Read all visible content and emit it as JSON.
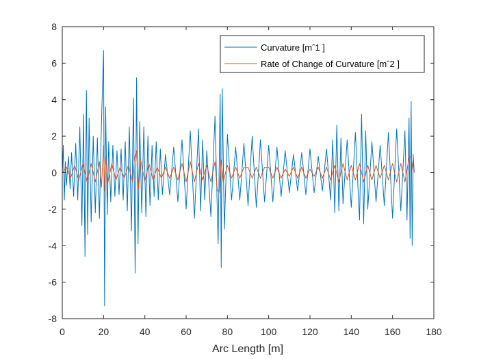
{
  "chart_data": {
    "type": "line",
    "title": "",
    "xlabel": "Arc Length [m]",
    "ylabel": "",
    "xlim": [
      0,
      180
    ],
    "ylim": [
      -8,
      8
    ],
    "xticks": [
      0,
      20,
      40,
      60,
      80,
      100,
      120,
      140,
      160,
      180
    ],
    "yticks": [
      -8,
      -6,
      -4,
      -2,
      0,
      2,
      4,
      6,
      8
    ],
    "grid": false,
    "legend_position": "top-right",
    "series": [
      {
        "name": "Curvature [mˆ1 ]",
        "color": "#0072BD",
        "x": [
          0,
          0.5,
          1,
          1.5,
          2,
          3,
          3.8,
          4.5,
          5.5,
          6.5,
          7.5,
          8.5,
          9.5,
          10.3,
          11,
          11.7,
          12.3,
          13,
          14,
          15,
          16,
          17,
          18,
          19,
          20,
          20.5,
          21,
          21.8,
          22.5,
          23.5,
          24.5,
          25.5,
          26.5,
          27.5,
          28.5,
          29.5,
          30.5,
          31.5,
          32.5,
          33.5,
          34.5,
          35.3,
          36,
          36.7,
          37.5,
          38.5,
          39.5,
          40.5,
          41.5,
          42.5,
          43.5,
          44.5,
          45.5,
          46.5,
          47.5,
          48.5,
          50,
          52,
          54,
          56,
          58,
          60,
          62,
          64,
          66,
          67,
          68,
          69,
          70,
          72,
          74,
          75.5,
          76.5,
          77,
          77.5,
          78.5,
          80,
          82,
          84,
          86,
          88,
          90,
          92,
          94,
          96,
          98,
          100,
          102,
          104,
          106,
          108,
          110,
          112,
          114,
          116,
          118,
          120,
          122,
          124,
          126,
          128,
          130,
          131,
          132,
          133,
          134,
          135,
          136,
          138,
          140,
          142,
          144,
          145,
          146,
          147,
          148,
          150,
          152,
          154,
          156,
          158,
          160,
          162,
          164,
          166,
          167,
          168,
          168.5,
          169,
          169.5,
          170,
          170.5
        ],
        "values": [
          0,
          1.5,
          -1.5,
          0.6,
          -0.7,
          0.9,
          -0.9,
          1.1,
          -1.3,
          1.6,
          -1.5,
          2.5,
          -2.9,
          3.2,
          -4.6,
          4.5,
          -3.4,
          3,
          -2.7,
          2,
          -2.2,
          1.9,
          -2.5,
          2.8,
          6.7,
          -7.3,
          3.6,
          -2.3,
          1.7,
          -1.6,
          1.5,
          -1.3,
          1.2,
          -1.2,
          1.3,
          -1.5,
          1.7,
          -2.1,
          2.5,
          -3.2,
          4.1,
          -5.5,
          5.2,
          -3.9,
          2.8,
          -2.2,
          2.5,
          -2.4,
          2,
          -1.8,
          1.5,
          -1.3,
          1.7,
          -1.5,
          1.3,
          -1.2,
          1,
          -1.2,
          1.4,
          -1.6,
          1.8,
          -2,
          2.3,
          -2.5,
          2.4,
          -2.1,
          1.8,
          -1.5,
          1.2,
          -2.4,
          3.1,
          -3.9,
          4.3,
          -5.2,
          4.6,
          -3.1,
          2.1,
          -1.5,
          1.4,
          -1.5,
          1.6,
          -1.8,
          2,
          -1.9,
          1.8,
          -1.6,
          1.5,
          -1.6,
          1.4,
          -1.3,
          1.2,
          -1.1,
          1,
          -1,
          1.1,
          -1.2,
          1.3,
          -1.1,
          0.9,
          -1,
          1.3,
          -1.5,
          1.8,
          -2.2,
          2.6,
          -2.1,
          1.9,
          -1.7,
          1.8,
          -1.9,
          2.2,
          -2.6,
          3.2,
          -2.8,
          2.3,
          -2,
          1.7,
          -1.6,
          1.5,
          -1.8,
          2.2,
          -2.5,
          2.4,
          -2.1,
          2.3,
          -2.6,
          3,
          -3.6,
          3.9,
          -4,
          1,
          0
        ]
      },
      {
        "name": "Rate of Change of Curvature [mˆ2 ]",
        "color": "#D95319",
        "x": [
          0,
          2,
          4,
          6,
          8,
          10,
          12,
          14,
          16,
          18,
          19,
          20,
          20.5,
          21,
          22,
          24,
          26,
          28,
          30,
          32,
          34,
          35,
          36,
          37,
          38,
          40,
          42,
          44,
          46,
          48,
          50,
          52,
          54,
          56,
          58,
          60,
          62,
          64,
          66,
          68,
          70,
          72,
          74,
          75,
          76,
          77,
          78,
          80,
          82,
          84,
          86,
          88,
          90,
          92,
          94,
          96,
          98,
          100,
          102,
          104,
          106,
          108,
          110,
          112,
          114,
          116,
          118,
          120,
          122,
          124,
          126,
          128,
          130,
          132,
          134,
          136,
          138,
          140,
          142,
          144,
          146,
          148,
          150,
          152,
          154,
          156,
          158,
          160,
          162,
          164,
          166,
          168,
          169,
          170
        ],
        "values": [
          0,
          0.3,
          -0.3,
          0.4,
          -0.4,
          0.5,
          -0.5,
          0.5,
          -0.5,
          0.6,
          -0.8,
          1.5,
          -1,
          0.9,
          -0.6,
          0.5,
          -0.4,
          0.3,
          -0.3,
          0.4,
          -0.5,
          0.8,
          1.2,
          -0.9,
          0.7,
          -0.5,
          0.5,
          -0.4,
          0.3,
          -0.3,
          0.3,
          -0.3,
          0.3,
          -0.4,
          0.5,
          -0.5,
          0.6,
          -0.5,
          0.5,
          -0.4,
          0.4,
          -0.5,
          0.6,
          -0.9,
          -1.1,
          0.7,
          -0.5,
          0.4,
          -0.3,
          0.3,
          -0.3,
          0.3,
          0.3,
          -0.3,
          0.3,
          -0.3,
          0.3,
          0.3,
          -0.3,
          0.3,
          -0.3,
          0.2,
          -0.2,
          0.3,
          -0.3,
          0.3,
          -0.3,
          0.2,
          -0.2,
          0.3,
          -0.3,
          0.3,
          -0.4,
          0.4,
          -0.5,
          0.5,
          -0.4,
          0.4,
          -0.4,
          0.5,
          -0.5,
          0.4,
          -0.4,
          0.4,
          -0.3,
          0.4,
          -0.4,
          0.5,
          -0.5,
          0.5,
          -0.5,
          0.8,
          0.9,
          0
        ]
      }
    ]
  }
}
